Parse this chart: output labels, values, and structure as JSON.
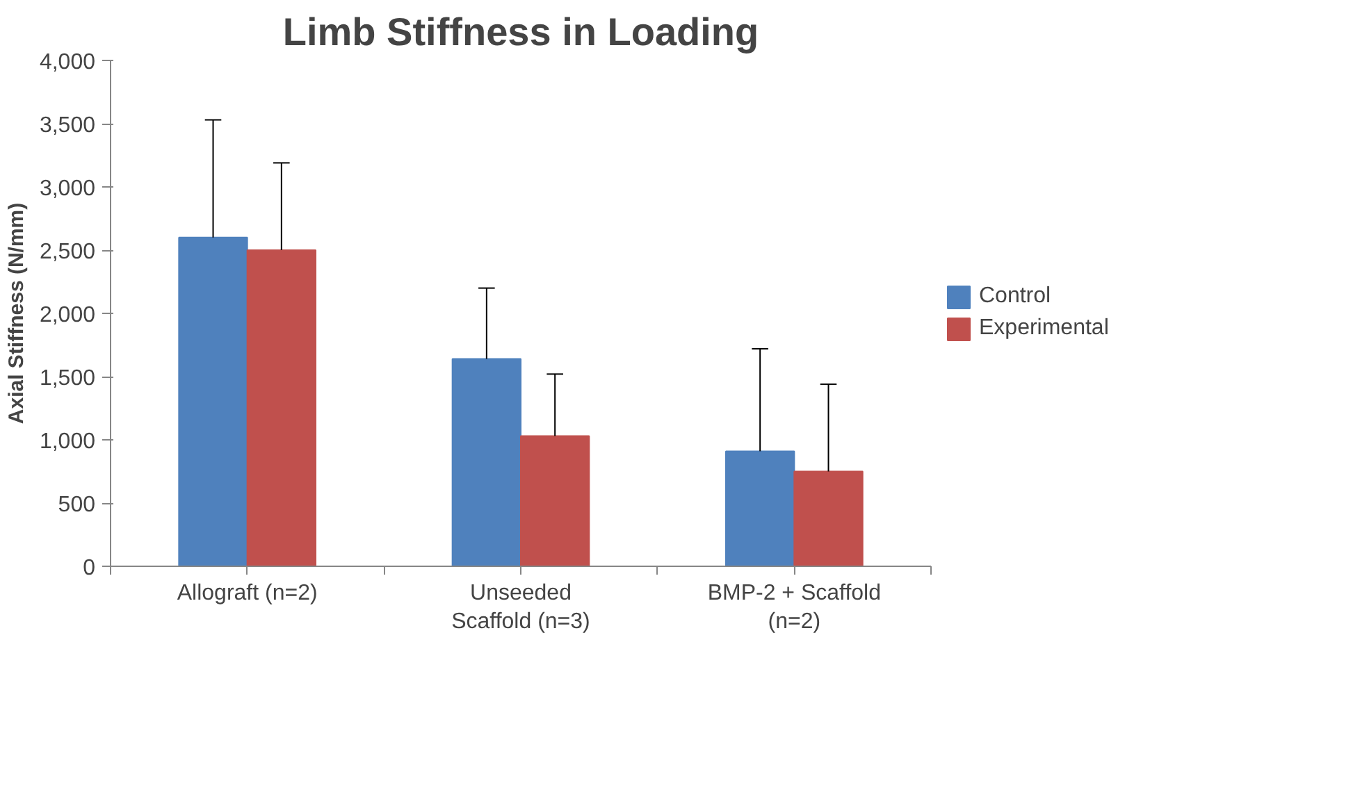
{
  "chart_data": {
    "type": "bar",
    "title": "Limb Stiffness in Loading",
    "ylabel": "Axial Stiffness (N/mm)",
    "categories": [
      "Allograft (n=2)",
      "Unseeded\nScaffold (n=3)",
      "BMP-2 + Scaffold\n(n=2)"
    ],
    "series": [
      {
        "name": "Control",
        "color": "#4f81bd",
        "values": [
          2600,
          1640,
          910
        ],
        "errors": [
          [
            2600,
            3530
          ],
          [
            1640,
            2200
          ],
          [
            910,
            1720
          ]
        ]
      },
      {
        "name": "Experimental",
        "color": "#c0504d",
        "values": [
          2500,
          1030,
          750
        ],
        "errors": [
          [
            2500,
            3190
          ],
          [
            1030,
            1520
          ],
          [
            750,
            1440
          ]
        ]
      }
    ],
    "ylim": [
      0,
      4000
    ],
    "yticks": [
      {
        "value": 0,
        "label": "0"
      },
      {
        "value": 500,
        "label": "500"
      },
      {
        "value": 1000,
        "label": "1,000"
      },
      {
        "value": 1500,
        "label": "1,500"
      },
      {
        "value": 2000,
        "label": "2,000"
      },
      {
        "value": 2500,
        "label": "2,500"
      },
      {
        "value": 3000,
        "label": "3,000"
      },
      {
        "value": 3500,
        "label": "3,500"
      },
      {
        "value": 4000,
        "label": "4,000"
      }
    ],
    "grid": false,
    "legend": "right"
  }
}
